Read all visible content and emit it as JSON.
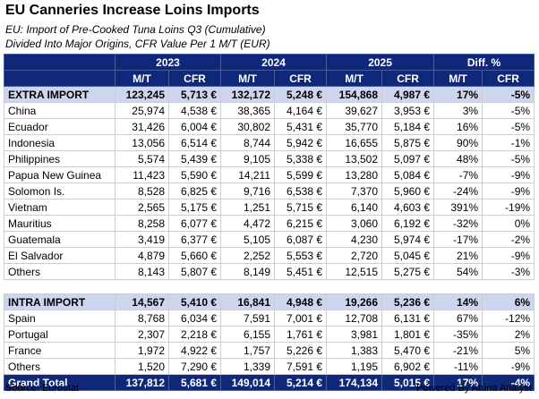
{
  "title": "EU Canneries Increase Loins Imports",
  "subtitle_line1": "EU: Import of Pre-Cooked Tuna Loins Q3 (Cumulative)",
  "subtitle_line2": "Divided Into Major Origins, CFR Value Per 1 M/T (EUR)",
  "headers": {
    "years": [
      "2023",
      "2024",
      "2025",
      "Diff. %"
    ],
    "sub": [
      "M/T",
      "CFR",
      "M/T",
      "CFR",
      "M/T",
      "CFR",
      "M/T",
      "CFR"
    ]
  },
  "extra_import": {
    "label": "EXTRA IMPORT",
    "cells": [
      "123,245",
      "5,713 €",
      "132,172",
      "5,248 €",
      "154,868",
      "4,987 €",
      "17%",
      "-5%"
    ]
  },
  "extra_rows": [
    {
      "label": "China",
      "cells": [
        "25,974",
        "4,538 €",
        "38,365",
        "4,164 €",
        "39,627",
        "3,953 €",
        "3%",
        "-5%"
      ]
    },
    {
      "label": "Ecuador",
      "cells": [
        "31,426",
        "6,004 €",
        "30,802",
        "5,431 €",
        "35,770",
        "5,184 €",
        "16%",
        "-5%"
      ]
    },
    {
      "label": "Indonesia",
      "cells": [
        "13,056",
        "6,514 €",
        "8,744",
        "5,942 €",
        "16,655",
        "5,875 €",
        "90%",
        "-1%"
      ]
    },
    {
      "label": "Philippines",
      "cells": [
        "5,574",
        "5,439 €",
        "9,105",
        "5,338 €",
        "13,502",
        "5,097 €",
        "48%",
        "-5%"
      ]
    },
    {
      "label": "Papua New Guinea",
      "cells": [
        "11,423",
        "5,590 €",
        "14,211",
        "5,599 €",
        "13,280",
        "5,084 €",
        "-7%",
        "-9%"
      ]
    },
    {
      "label": "Solomon Is.",
      "cells": [
        "8,528",
        "6,825 €",
        "9,716",
        "6,538 €",
        "7,370",
        "5,960 €",
        "-24%",
        "-9%"
      ]
    },
    {
      "label": "Vietnam",
      "cells": [
        "2,565",
        "5,175 €",
        "1,251",
        "5,715 €",
        "6,140",
        "4,603 €",
        "391%",
        "-19%"
      ]
    },
    {
      "label": "Mauritius",
      "cells": [
        "8,258",
        "6,077 €",
        "4,472",
        "6,215 €",
        "3,060",
        "6,192 €",
        "-32%",
        "0%"
      ]
    },
    {
      "label": "Guatemala",
      "cells": [
        "3,419",
        "6,377 €",
        "5,105",
        "6,087 €",
        "4,230",
        "5,974 €",
        "-17%",
        "-2%"
      ]
    },
    {
      "label": "El Salvador",
      "cells": [
        "4,879",
        "5,660 €",
        "2,252",
        "5,553 €",
        "2,720",
        "5,045 €",
        "21%",
        "-9%"
      ]
    },
    {
      "label": "Others",
      "cells": [
        "8,143",
        "5,807 €",
        "8,149",
        "5,451 €",
        "12,515",
        "5,275 €",
        "54%",
        "-3%"
      ]
    }
  ],
  "intra_import": {
    "label": "INTRA IMPORT",
    "cells": [
      "14,567",
      "5,410 €",
      "16,841",
      "4,948 €",
      "19,266",
      "5,236 €",
      "14%",
      "6%"
    ]
  },
  "intra_rows": [
    {
      "label": "Spain",
      "cells": [
        "8,768",
        "6,034 €",
        "7,591",
        "7,001 €",
        "12,708",
        "6,131 €",
        "67%",
        "-12%"
      ]
    },
    {
      "label": "Portugal",
      "cells": [
        "2,307",
        "2,218 €",
        "6,155",
        "1,761 €",
        "3,981",
        "1,801 €",
        "-35%",
        "2%"
      ]
    },
    {
      "label": "France",
      "cells": [
        "1,972",
        "4,922 €",
        "1,757",
        "5,226 €",
        "1,383",
        "5,470 €",
        "-21%",
        "5%"
      ]
    },
    {
      "label": "Others",
      "cells": [
        "1,520",
        "7,290 €",
        "1,339",
        "7,591 €",
        "1,195",
        "6,902 €",
        "-11%",
        "-9%"
      ]
    }
  ],
  "grand_total": {
    "label": "Grand Total",
    "cells": [
      "137,812",
      "5,681 €",
      "149,014",
      "5,214 €",
      "174,134",
      "5,015 €",
      "17%",
      "-4%"
    ]
  },
  "source": "Source: Eurostat",
  "powered_by": "Powered By Atuna Analyst"
}
